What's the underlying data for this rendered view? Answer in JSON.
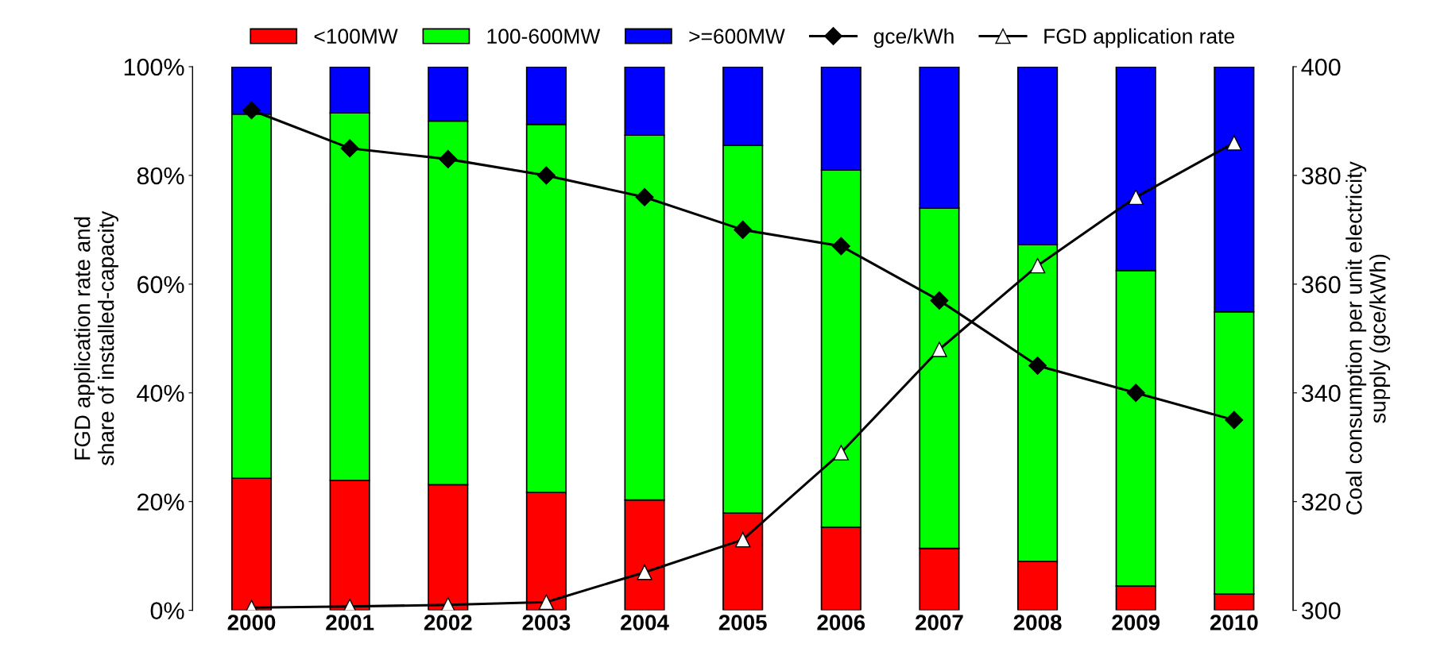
{
  "chart_data": {
    "type": "bar",
    "stacked": true,
    "categories": [
      "2000",
      "2001",
      "2002",
      "2003",
      "2004",
      "2005",
      "2006",
      "2007",
      "2008",
      "2009",
      "2010"
    ],
    "ylabel": "FGD application rate and\nshare of installed-capacity",
    "y2label": "Coal consumption per unit electricity\nsupply (gce/kWh)",
    "ylim": [
      0,
      100
    ],
    "yticks": [
      {
        "value": 0,
        "label": "0%"
      },
      {
        "value": 20,
        "label": "20%"
      },
      {
        "value": 40,
        "label": "40%"
      },
      {
        "value": 60,
        "label": "60%"
      },
      {
        "value": 80,
        "label": "80%"
      },
      {
        "value": 100,
        "label": "100%"
      }
    ],
    "y2lim": [
      300,
      400
    ],
    "y2ticks": [
      300,
      320,
      340,
      360,
      380,
      400
    ],
    "grid": false,
    "legend": "top",
    "series": [
      {
        "name": "<100MW",
        "color": "#ff0000",
        "values": [
          24.3,
          23.9,
          23.1,
          21.7,
          20.3,
          17.9,
          15.3,
          11.4,
          9.0,
          4.5,
          3.0
        ]
      },
      {
        "name": "100-600MW",
        "color": "#00ff00",
        "values": [
          67.0,
          67.6,
          66.9,
          67.7,
          67.1,
          67.6,
          65.7,
          62.6,
          58.3,
          58.0,
          51.9
        ]
      },
      {
        "name": ">=600MW",
        "color": "#0000ff",
        "values": [
          8.7,
          8.5,
          10.0,
          10.6,
          12.6,
          14.5,
          19.0,
          26.0,
          32.7,
          37.5,
          45.1
        ]
      },
      {
        "name": "gce/kWh",
        "type": "line",
        "axis": "y2",
        "color": "#000000",
        "marker": "diamond",
        "values": [
          392,
          385,
          383,
          380,
          376,
          370,
          367,
          357,
          345,
          340,
          335
        ]
      },
      {
        "name": "FGD application rate",
        "type": "line",
        "color": "#000000",
        "marker": "triangle",
        "values": [
          0.5,
          0.7,
          1.0,
          1.5,
          7,
          13,
          29,
          48,
          63.4,
          76,
          86
        ]
      }
    ]
  }
}
